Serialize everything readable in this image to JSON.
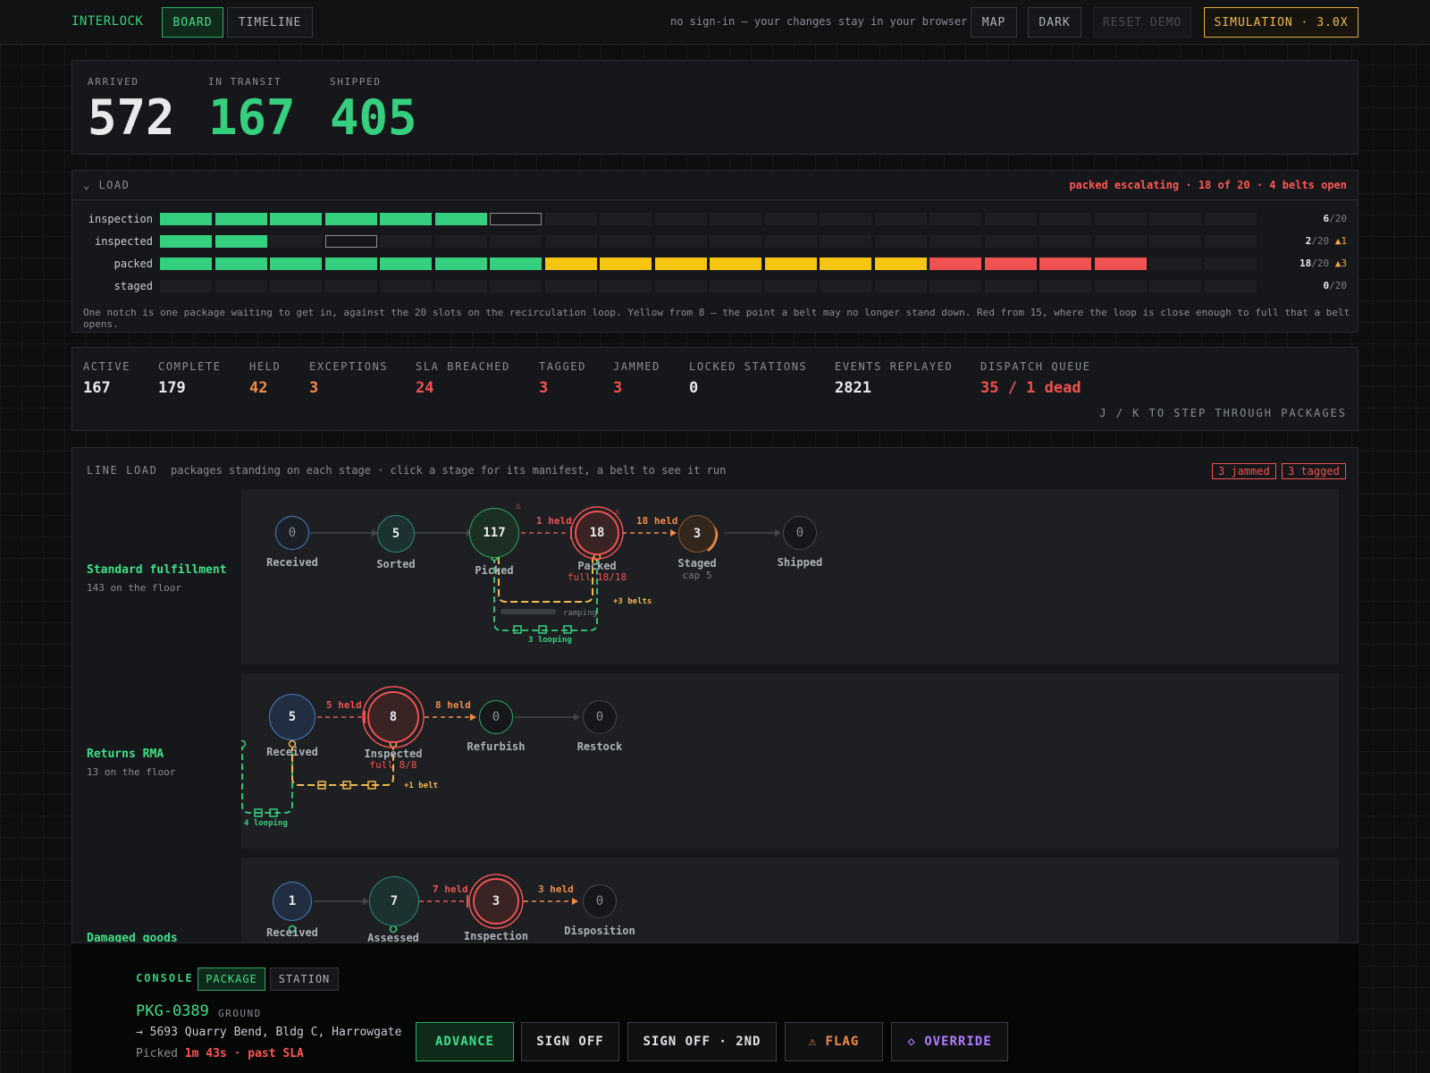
{
  "topbar": {
    "brand": "INTERLOCK",
    "tabs": [
      "BOARD",
      "TIMELINE"
    ],
    "notice": "no sign-in — your changes stay in your browser",
    "map": "MAP",
    "dark": "DARK",
    "reset": "RESET DEMO",
    "simulation": "SIMULATION · 3.0X"
  },
  "counters": [
    {
      "label": "ARRIVED",
      "value": "572"
    },
    {
      "label": "IN TRANSIT",
      "value": "167"
    },
    {
      "label": "SHIPPED",
      "value": "405"
    }
  ],
  "load": {
    "title": "⌄ LOAD",
    "status": "packed escalating · 18 of 20 · 4 belts open",
    "rows": [
      {
        "name": "inspection",
        "count": "6",
        "total": "/20",
        "warn": ""
      },
      {
        "name": "inspected",
        "count": "2",
        "total": "/20",
        "warn": "▲1"
      },
      {
        "name": "packed",
        "count": "18",
        "total": "/20",
        "warn": "▲3"
      },
      {
        "name": "staged",
        "count": "0",
        "total": "/20",
        "warn": ""
      }
    ],
    "note": "One notch is one package waiting to get in, against the 20 slots on the recirculation loop. Yellow from 8 — the point a belt may no longer stand down. Red from 15, where the loop is close enough to full that a belt opens."
  },
  "stats": [
    {
      "label": "ACTIVE",
      "value": "167"
    },
    {
      "label": "COMPLETE",
      "value": "179"
    },
    {
      "label": "HELD",
      "value": "42"
    },
    {
      "label": "EXCEPTIONS",
      "value": "3"
    },
    {
      "label": "SLA BREACHED",
      "value": "24"
    },
    {
      "label": "TAGGED",
      "value": "3"
    },
    {
      "label": "JAMMED",
      "value": "3"
    },
    {
      "label": "LOCKED STATIONS",
      "value": "0"
    },
    {
      "label": "EVENTS REPLAYED",
      "value": "2821"
    },
    {
      "label": "DISPATCH QUEUE",
      "value": "35 / 1 dead"
    }
  ],
  "steps_hint": "J / K TO STEP THROUGH PACKAGES",
  "line_load": {
    "title": "LINE LOAD",
    "subtitle": "packages standing on each stage · click a stage for its manifest, a belt to see it run",
    "jammed_tag": "3 jammed",
    "tagged_tag": "3 tagged",
    "lanes": [
      {
        "name": "Standard fulfillment",
        "sub": "143 on the floor",
        "nodes": [
          {
            "value": "0",
            "label": "Received"
          },
          {
            "value": "5",
            "label": "Sorted"
          },
          {
            "value": "117",
            "label": "Picked"
          },
          {
            "value": "18",
            "label": "Packed",
            "sub": "full 18/18"
          },
          {
            "value": "3",
            "label": "Staged",
            "sub": "cap 5"
          },
          {
            "value": "0",
            "label": "Shipped"
          }
        ],
        "edges": [
          "1 held",
          "18 held"
        ],
        "belts": "+3 belts",
        "ramping": "ramping",
        "looping": "3 looping"
      },
      {
        "name": "Returns RMA",
        "sub": "13 on the floor",
        "nodes": [
          {
            "value": "5",
            "label": "Received"
          },
          {
            "value": "8",
            "label": "Inspected",
            "sub": "full 8/8"
          },
          {
            "value": "0",
            "label": "Refurbish"
          },
          {
            "value": "0",
            "label": "Restock"
          }
        ],
        "edges": [
          "5 held",
          "8 held"
        ],
        "belts": "+1 belt",
        "looping": "4 looping"
      },
      {
        "name": "Damaged goods",
        "sub": "",
        "nodes": [
          {
            "value": "1",
            "label": "Received"
          },
          {
            "value": "7",
            "label": "Assessed"
          },
          {
            "value": "3",
            "label": "Inspection"
          },
          {
            "value": "0",
            "label": "Disposition"
          }
        ],
        "edges": [
          "7 held",
          "3 held"
        ]
      }
    ]
  },
  "console": {
    "title": "CONSOLE",
    "tabs": [
      "PACKAGE",
      "STATION"
    ],
    "package_id": "PKG-0389",
    "mode": "GROUND",
    "address": "→ 5693 Quarry Bend, Bldg C, Harrowgate",
    "time_prefix": "Picked",
    "time_value": "1m 43s · past SLA",
    "actions": [
      "ADVANCE",
      "SIGN OFF",
      "SIGN OFF · 2ND",
      "⚠ FLAG",
      "◇ OVERRIDE"
    ]
  },
  "colors": {
    "accent": "#34d27b",
    "warning": "#f5c512",
    "danger": "#f05252",
    "amber": "#f2b84b"
  },
  "chart_data": {
    "type": "bar",
    "title": "LOAD",
    "categories": [
      "inspection",
      "inspected",
      "packed",
      "staged"
    ],
    "values": [
      6,
      2,
      18,
      0
    ],
    "ylim": [
      0,
      20
    ]
  }
}
